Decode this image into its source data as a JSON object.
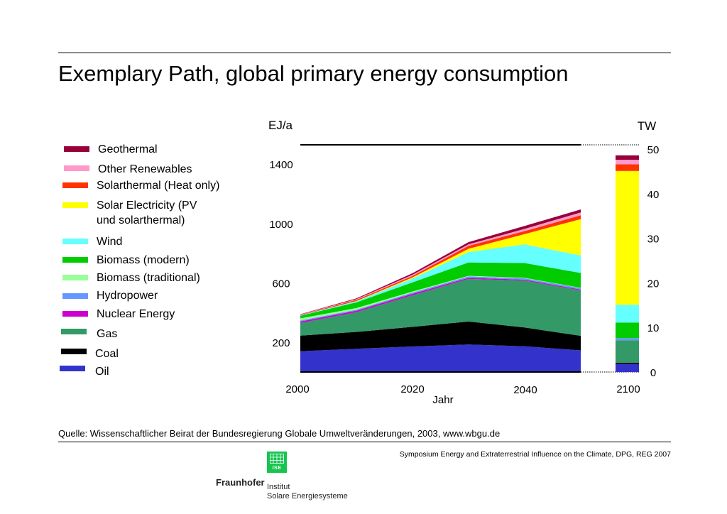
{
  "title": "Exemplary Path, global primary energy consumption",
  "legend": [
    {
      "label": "Geothermal",
      "color": "#99003a"
    },
    {
      "label": "Other Renewables",
      "color": "#ff99cc"
    },
    {
      "label": "Solarthermal (Heat only)",
      "color": "#ff3300"
    },
    {
      "label": "Solar Electricity (PV",
      "label2": "und solarthermal)",
      "color": "#ffff00"
    },
    {
      "label": "Wind",
      "color": "#66ffff"
    },
    {
      "label": "Biomass (modern)",
      "color": "#00cc00"
    },
    {
      "label": "Biomass (traditional)",
      "color": "#99ff99"
    },
    {
      "label": "Hydropower",
      "color": "#6699ff"
    },
    {
      "label": "Nuclear Energy",
      "color": "#cc00cc"
    },
    {
      "label": "Gas",
      "color": "#339966"
    },
    {
      "label": "Coal",
      "color": "#000000"
    },
    {
      "label": "Oil",
      "color": "#3333cc"
    }
  ],
  "source": "Quelle: Wissenschaftlicher Beirat der Bundesregierung Globale Umweltveränderungen, 2003, www.wbgu.de",
  "footer": "Symposium Energy and Extraterrestrial Influence on the Climate, DPG, REG 2007",
  "logo": {
    "mark": "ISE",
    "brand": "Fraunhofer",
    "line1": "Institut",
    "line2": "Solare Energiesysteme"
  },
  "chart_data": {
    "type": "area",
    "stacked": true,
    "left_axis": {
      "label": "EJ/a",
      "ticks": [
        200,
        600,
        1000,
        1400
      ],
      "range": [
        0,
        1530
      ]
    },
    "right_axis": {
      "label": "TW",
      "ticks": [
        0,
        10,
        20,
        30,
        40,
        50
      ],
      "range": [
        0,
        50
      ]
    },
    "xlabel": "Jahr",
    "x_ticks": [
      "2000",
      "2020",
      "2040",
      "2100"
    ],
    "x": [
      2000,
      2010,
      2020,
      2030,
      2040,
      2050
    ],
    "series": [
      {
        "name": "Oil",
        "color": "#3333cc",
        "values": [
          140,
          157,
          172,
          185,
          173,
          146
        ]
      },
      {
        "name": "Coal",
        "color": "#000000",
        "values": [
          105,
          113,
          132,
          155,
          127,
          98
        ]
      },
      {
        "name": "Gas",
        "color": "#339966",
        "values": [
          85,
          133,
          213,
          287,
          316,
          306
        ]
      },
      {
        "name": "Nuclear Energy",
        "color": "#cc00cc",
        "values": [
          10,
          10,
          10,
          8,
          6,
          5
        ]
      },
      {
        "name": "Hydropower",
        "color": "#6699ff",
        "values": [
          7,
          7,
          8,
          9,
          9,
          10
        ]
      },
      {
        "name": "Biomass (traditional)",
        "color": "#99ff99",
        "values": [
          14,
          11,
          7,
          4,
          3,
          2
        ]
      },
      {
        "name": "Biomass (modern)",
        "color": "#00cc00",
        "values": [
          18,
          38,
          62,
          90,
          100,
          100
        ]
      },
      {
        "name": "Wind",
        "color": "#66ffff",
        "values": [
          2,
          7,
          25,
          70,
          125,
          118
        ]
      },
      {
        "name": "Solar Electricity (PV und solarthermal)",
        "color": "#ffff00",
        "values": [
          0,
          2,
          8,
          22,
          70,
          245
        ]
      },
      {
        "name": "Solarthermal (Heat only)",
        "color": "#ff3300",
        "values": [
          3,
          8,
          10,
          20,
          20,
          25
        ]
      },
      {
        "name": "Other Renewables",
        "color": "#ff99cc",
        "values": [
          3,
          5,
          8,
          10,
          15,
          20
        ]
      },
      {
        "name": "Geothermal",
        "color": "#99003a",
        "values": [
          2,
          5,
          10,
          15,
          20,
          20
        ]
      }
    ],
    "bar_2100_tw": [
      {
        "name": "Oil",
        "value": 1.8
      },
      {
        "name": "Coal",
        "value": 0.3
      },
      {
        "name": "Gas",
        "value": 5.0
      },
      {
        "name": "Nuclear Energy",
        "value": 0.0
      },
      {
        "name": "Hydropower",
        "value": 0.5
      },
      {
        "name": "Biomass (traditional)",
        "value": 0.0
      },
      {
        "name": "Biomass (modern)",
        "value": 3.5
      },
      {
        "name": "Wind",
        "value": 4.0
      },
      {
        "name": "Solar Electricity (PV und solarthermal)",
        "value": 30.0
      },
      {
        "name": "Solarthermal (Heat only)",
        "value": 1.5
      },
      {
        "name": "Other Renewables",
        "value": 1.0
      },
      {
        "name": "Geothermal",
        "value": 1.0
      }
    ]
  }
}
